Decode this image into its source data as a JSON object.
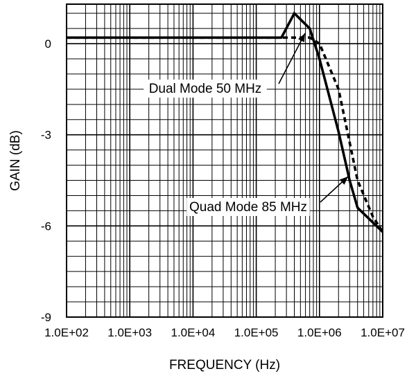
{
  "chart_data": {
    "type": "line",
    "title": "",
    "xlabel": "FREQUENCY (Hz)",
    "ylabel": "GAIN (dB)",
    "x_scale": "log",
    "xlim": [
      100,
      10000000
    ],
    "ylim": [
      -9,
      1.3
    ],
    "grid": true,
    "x_tick_values": [
      100,
      1000,
      10000,
      100000,
      1000000,
      10000000
    ],
    "x_tick_labels": [
      "1.0E+02",
      "1.0E+03",
      "1.0E+04",
      "1.0E+05",
      "1.0E+06",
      "1.0E+07"
    ],
    "y_tick_values": [
      0,
      -3,
      -6,
      -9
    ],
    "y_tick_labels": [
      "0",
      "-3",
      "-6",
      "-9"
    ],
    "series": [
      {
        "name": "Quad Mode 85 MHz",
        "style": "solid",
        "x": [
          100,
          250000,
          400000,
          700000,
          1000000,
          2000000,
          3000000,
          4000000,
          10000000
        ],
        "y": [
          0.2,
          0.2,
          1.0,
          0.5,
          -0.5,
          -2.9,
          -4.5,
          -5.4,
          -6.2
        ]
      },
      {
        "name": "Dual Mode 50 MHz",
        "style": "dashed",
        "x": [
          100,
          250000,
          500000,
          700000,
          1000000,
          2000000,
          4000000,
          7000000,
          10000000
        ],
        "y": [
          0.2,
          0.2,
          0.2,
          0.2,
          0.0,
          -1.5,
          -4.5,
          -5.7,
          -6.2
        ]
      }
    ],
    "annotations": [
      {
        "text": "Dual Mode 50 MHz"
      },
      {
        "text": "Quad Mode 85 MHz"
      }
    ]
  }
}
